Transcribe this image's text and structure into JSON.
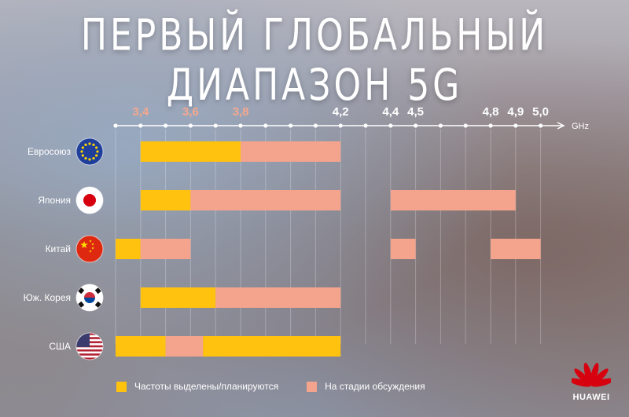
{
  "chart_data": {
    "type": "bar",
    "title": "ПЕРВЫЙ ГЛОБАЛЬНЫЙ ДИАПАЗОН 5G",
    "unit": "GHz",
    "xlim": [
      3.3,
      5.1
    ],
    "tick_labels": [
      {
        "value": 3.4,
        "label": "3,4",
        "highlight": true
      },
      {
        "value": 3.6,
        "label": "3,6",
        "highlight": true
      },
      {
        "value": 3.8,
        "label": "3,8",
        "highlight": true
      },
      {
        "value": 4.2,
        "label": "4,2",
        "highlight": false
      },
      {
        "value": 4.4,
        "label": "4,4",
        "highlight": false
      },
      {
        "value": 4.5,
        "label": "4,5",
        "highlight": false
      },
      {
        "value": 4.8,
        "label": "4,8",
        "highlight": false
      },
      {
        "value": 4.9,
        "label": "4,9",
        "highlight": false
      },
      {
        "value": 5.0,
        "label": "5,0",
        "highlight": false
      }
    ],
    "rows": [
      {
        "label": "Евросоюз",
        "flag": "eu-flag",
        "segments": [
          {
            "start": 3.4,
            "end": 3.8,
            "status": "allocated"
          },
          {
            "start": 3.8,
            "end": 4.2,
            "status": "discussion"
          }
        ]
      },
      {
        "label": "Япония",
        "flag": "japan-flag",
        "segments": [
          {
            "start": 3.4,
            "end": 3.6,
            "status": "allocated"
          },
          {
            "start": 3.6,
            "end": 4.2,
            "status": "discussion"
          },
          {
            "start": 4.4,
            "end": 4.9,
            "status": "discussion"
          }
        ]
      },
      {
        "label": "Китай",
        "flag": "china-flag",
        "segments": [
          {
            "start": 3.3,
            "end": 3.4,
            "status": "allocated"
          },
          {
            "start": 3.4,
            "end": 3.6,
            "status": "discussion"
          },
          {
            "start": 4.4,
            "end": 4.5,
            "status": "discussion"
          },
          {
            "start": 4.8,
            "end": 5.0,
            "status": "discussion"
          }
        ]
      },
      {
        "label": "Юж. Корея",
        "flag": "korea-flag",
        "segments": [
          {
            "start": 3.4,
            "end": 3.7,
            "status": "allocated"
          },
          {
            "start": 3.7,
            "end": 4.2,
            "status": "discussion"
          }
        ]
      },
      {
        "label": "США",
        "flag": "usa-flag",
        "segments": [
          {
            "start": 3.3,
            "end": 3.5,
            "status": "allocated"
          },
          {
            "start": 3.5,
            "end": 3.65,
            "status": "discussion"
          },
          {
            "start": 3.65,
            "end": 4.2,
            "status": "allocated"
          }
        ]
      }
    ],
    "legend": [
      {
        "status": "allocated",
        "label": "Частоты выделены/планируются",
        "color": "#FFC20E"
      },
      {
        "status": "discussion",
        "label": "На стадии обсуждения",
        "color": "#F4A48D"
      }
    ],
    "colors": {
      "highlight_tick": "#F5A88E",
      "tick": "#FFFFFF"
    }
  },
  "brand": {
    "name": "HUAWEI",
    "color": "#D7000F",
    "icon": "huawei-logo-icon"
  }
}
